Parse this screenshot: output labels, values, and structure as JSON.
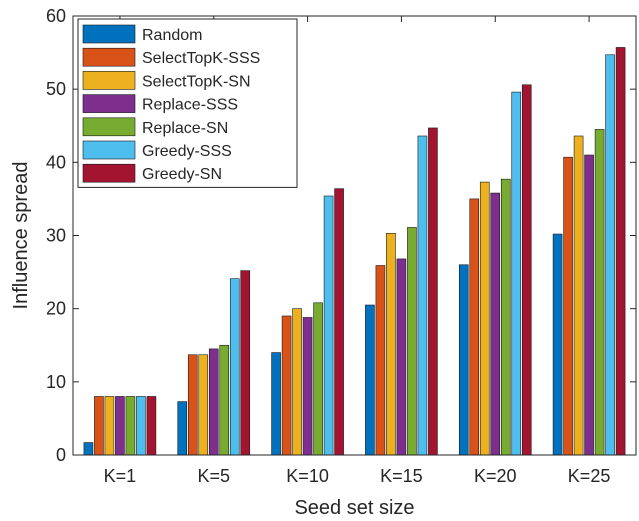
{
  "chart_data": {
    "type": "bar",
    "title": "",
    "xlabel": "Seed set size",
    "ylabel": "Influence spread",
    "ylim": [
      0,
      60
    ],
    "yticks": [
      0,
      10,
      20,
      30,
      40,
      50,
      60
    ],
    "grid": false,
    "legend_position": "top-left",
    "categories": [
      "K=1",
      "K=5",
      "K=10",
      "K=15",
      "K=20",
      "K=25"
    ],
    "series": [
      {
        "name": "Random",
        "color": "#0072bd",
        "values": [
          1.7,
          7.3,
          14.0,
          20.5,
          26.0,
          30.2
        ]
      },
      {
        "name": "SelectTopK-SSS",
        "color": "#d95319",
        "values": [
          8.0,
          13.7,
          19.0,
          25.9,
          35.0,
          40.7
        ]
      },
      {
        "name": "SelectTopK-SN",
        "color": "#edb120",
        "values": [
          8.0,
          13.7,
          20.0,
          30.3,
          37.3,
          43.6
        ]
      },
      {
        "name": "Replace-SSS",
        "color": "#7e2f8e",
        "values": [
          8.0,
          14.5,
          18.8,
          26.8,
          35.8,
          41.0
        ]
      },
      {
        "name": "Replace-SN",
        "color": "#77ac30",
        "values": [
          8.0,
          15.0,
          20.8,
          31.1,
          37.7,
          44.5
        ]
      },
      {
        "name": "Greedy-SSS",
        "color": "#4dbeee",
        "values": [
          8.0,
          24.1,
          35.4,
          43.6,
          49.6,
          54.7
        ]
      },
      {
        "name": "Greedy-SN",
        "color": "#a2142f",
        "values": [
          8.0,
          25.2,
          36.4,
          44.7,
          50.6,
          55.7
        ]
      }
    ]
  }
}
